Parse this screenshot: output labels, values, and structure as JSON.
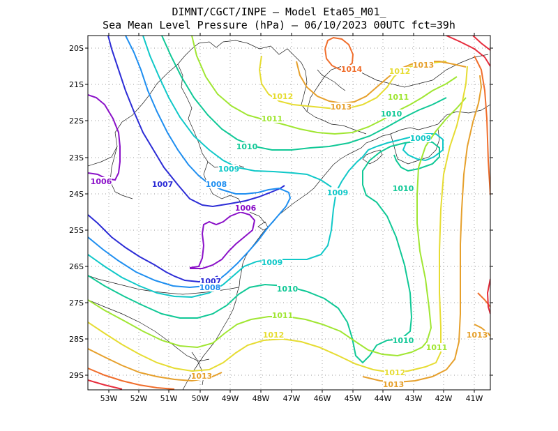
{
  "header": {
    "line1": "DIMNT/CGCT/INPE –  Model Eta05_M01_",
    "line2": "Sea Mean Level Pressure (hPa) – 06/10/2023 00UTC fct=39h"
  },
  "axes": {
    "lat_labels": [
      "20S",
      "21S",
      "22S",
      "23S",
      "24S",
      "25S",
      "26S",
      "27S",
      "28S",
      "29S"
    ],
    "lon_labels": [
      "53W",
      "52W",
      "51W",
      "50W",
      "49W",
      "48W",
      "47W",
      "46W",
      "45W",
      "44W",
      "43W",
      "42W",
      "41W"
    ]
  },
  "colors": {
    "c1006": "#8a10c8",
    "c1007": "#2c2cd6",
    "c1008": "#1e8ef0",
    "c1009": "#10c8c8",
    "c1010": "#10c896",
    "c1011": "#a0e632",
    "c1012": "#e6dc32",
    "c1013": "#e6a02c",
    "c1014": "#f06e2c",
    "c1015": "#e62c3c",
    "coast": "#1a1a1a"
  },
  "contour_labels": [
    {
      "text": "1006",
      "color": "c1006"
    },
    {
      "text": "1006",
      "color": "c1006"
    },
    {
      "text": "1007",
      "color": "c1007"
    },
    {
      "text": "1007",
      "color": "c1007"
    },
    {
      "text": "1008",
      "color": "c1008"
    },
    {
      "text": "1008",
      "color": "c1008"
    },
    {
      "text": "1009",
      "color": "c1009"
    },
    {
      "text": "1009",
      "color": "c1009"
    },
    {
      "text": "1009",
      "color": "c1009"
    },
    {
      "text": "1009",
      "color": "c1009"
    },
    {
      "text": "1010",
      "color": "c1010"
    },
    {
      "text": "1010",
      "color": "c1010"
    },
    {
      "text": "1010",
      "color": "c1010"
    },
    {
      "text": "1010",
      "color": "c1010"
    },
    {
      "text": "1010",
      "color": "c1010"
    },
    {
      "text": "1011",
      "color": "c1011"
    },
    {
      "text": "1011",
      "color": "c1011"
    },
    {
      "text": "1011",
      "color": "c1011"
    },
    {
      "text": "1011",
      "color": "c1011"
    },
    {
      "text": "1012",
      "color": "c1012"
    },
    {
      "text": "1012",
      "color": "c1012"
    },
    {
      "text": "1012",
      "color": "c1012"
    },
    {
      "text": "1012",
      "color": "c1012"
    },
    {
      "text": "1013",
      "color": "c1013"
    },
    {
      "text": "1013",
      "color": "c1013"
    },
    {
      "text": "1013",
      "color": "c1013"
    },
    {
      "text": "1013",
      "color": "c1013"
    },
    {
      "text": "1013",
      "color": "c1013"
    },
    {
      "text": "1014",
      "color": "c1014"
    }
  ]
}
